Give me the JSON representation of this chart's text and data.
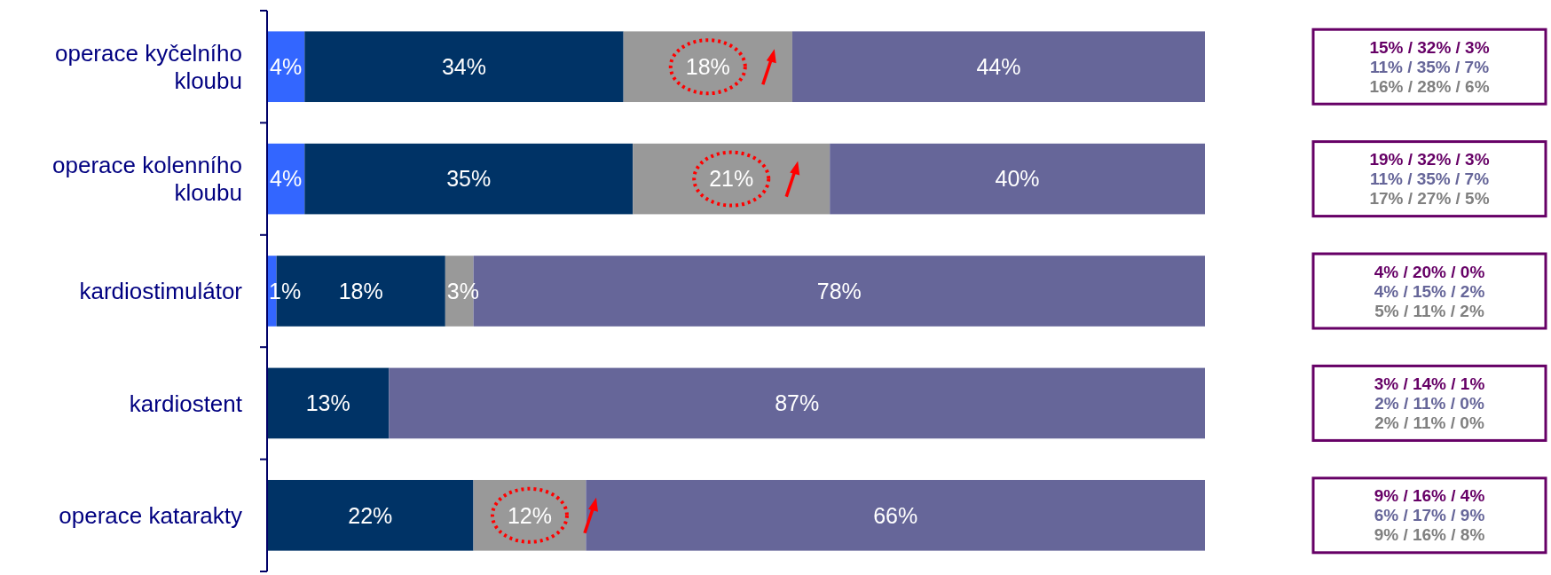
{
  "chart_data": {
    "type": "bar",
    "orientation": "horizontal",
    "stacked": true,
    "categories": [
      "operace kyčelního kloubu",
      "operace kolenního kloubu",
      "kardiostimulátor",
      "kardiostent",
      "operace katarakty"
    ],
    "series": [
      {
        "color": "#3366ff",
        "values": [
          4,
          4,
          1,
          null,
          null
        ],
        "value_labels": [
          "4%",
          "4%",
          "1%",
          null,
          null
        ]
      },
      {
        "color": "#003366",
        "values": [
          34,
          35,
          18,
          13,
          22
        ],
        "value_labels": [
          "34%",
          "35%",
          "18%",
          "13%",
          "22%"
        ]
      },
      {
        "color": "#999999",
        "values": [
          18,
          21,
          3,
          null,
          12
        ],
        "value_labels": [
          "18%",
          "21%",
          "3%",
          null,
          "12%"
        ]
      },
      {
        "color": "#666699",
        "values": [
          44,
          40,
          78,
          87,
          66
        ],
        "value_labels": [
          "44%",
          "40%",
          "78%",
          "87%",
          "66%"
        ]
      }
    ],
    "annotations": [
      "15% / 32% / 3%",
      "11% / 35% / 7%",
      "16% / 28% / 6%",
      "19% / 32% / 3%",
      "11% / 35% / 7%",
      "17% / 27% / 5%",
      "4% / 20% / 0%",
      "4% / 15% / 2%",
      "5% / 11% / 2%",
      "3% / 14% / 1%",
      "2% / 11% / 0%",
      "2% / 11% / 0%",
      "9% / 16% / 4%",
      "6% / 17% / 9%",
      "9% / 16% / 8%"
    ]
  }
}
